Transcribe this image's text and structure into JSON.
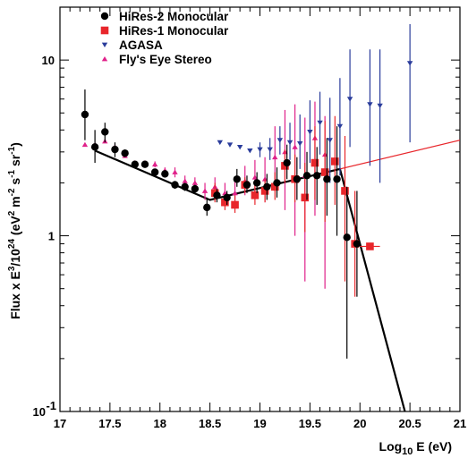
{
  "chart_data": {
    "type": "scatter",
    "xlabel_base": "Log",
    "xlabel_sub": "10",
    "xlabel_rest": " E (eV)",
    "ylabel_main": "Flux x E",
    "ylabel_sup1": "3",
    "ylabel_mid": "/10",
    "ylabel_sup2": "24",
    "ylabel_unit": " (eV",
    "ylabel_sup3": "2",
    "ylabel_m": " m",
    "ylabel_sup4": "-2",
    "ylabel_s": " s",
    "ylabel_sup5": "-1",
    "ylabel_sr": " sr",
    "ylabel_sup6": "-1",
    "ylabel_close": ")",
    "x_scale": "linear",
    "y_scale": "log",
    "xlim": [
      17,
      21
    ],
    "ylim": [
      0.1,
      20
    ],
    "x_ticks": [
      "17",
      "17.5",
      "18",
      "18.5",
      "19",
      "19.5",
      "20",
      "20.5",
      "21"
    ],
    "y_ticks": [
      {
        "value": 0.1,
        "base": "10",
        "sup": "-1"
      },
      {
        "value": 1,
        "base": "1",
        "sup": ""
      },
      {
        "value": 10,
        "base": "10",
        "sup": ""
      }
    ],
    "legend_position": "top-left",
    "series": [
      {
        "name": "HiRes-2 Monocular",
        "marker": "circle",
        "color": "#000000",
        "points": [
          {
            "x": 17.25,
            "y": 4.9,
            "lo": 3.5,
            "hi": 6.8
          },
          {
            "x": 17.35,
            "y": 3.2,
            "lo": 2.6,
            "hi": 4.0
          },
          {
            "x": 17.45,
            "y": 3.9,
            "lo": 3.4,
            "hi": 4.4
          },
          {
            "x": 17.55,
            "y": 3.1,
            "lo": 2.8,
            "hi": 3.4
          },
          {
            "x": 17.65,
            "y": 2.95,
            "lo": 2.8,
            "hi": 3.1
          },
          {
            "x": 17.75,
            "y": 2.55,
            "lo": 2.45,
            "hi": 2.65
          },
          {
            "x": 17.85,
            "y": 2.55,
            "lo": 2.45,
            "hi": 2.65
          },
          {
            "x": 17.95,
            "y": 2.3,
            "lo": 2.2,
            "hi": 2.4
          },
          {
            "x": 18.05,
            "y": 2.25,
            "lo": 2.15,
            "hi": 2.35
          },
          {
            "x": 18.15,
            "y": 1.95,
            "lo": 1.85,
            "hi": 2.05
          },
          {
            "x": 18.25,
            "y": 1.9,
            "lo": 1.8,
            "hi": 2.0
          },
          {
            "x": 18.35,
            "y": 1.85,
            "lo": 1.75,
            "hi": 1.95
          },
          {
            "x": 18.47,
            "y": 1.45,
            "lo": 1.3,
            "hi": 1.65
          },
          {
            "x": 18.57,
            "y": 1.7,
            "lo": 1.55,
            "hi": 1.85
          },
          {
            "x": 18.67,
            "y": 1.65,
            "lo": 1.5,
            "hi": 1.8
          },
          {
            "x": 18.77,
            "y": 2.1,
            "lo": 1.9,
            "hi": 2.4
          },
          {
            "x": 18.87,
            "y": 1.95,
            "lo": 1.75,
            "hi": 2.2
          },
          {
            "x": 18.97,
            "y": 2.0,
            "lo": 1.75,
            "hi": 2.3
          },
          {
            "x": 19.07,
            "y": 1.9,
            "lo": 1.6,
            "hi": 2.25
          },
          {
            "x": 19.17,
            "y": 2.0,
            "lo": 1.65,
            "hi": 2.45
          },
          {
            "x": 19.27,
            "y": 2.6,
            "lo": 2.1,
            "hi": 3.3
          },
          {
            "x": 19.37,
            "y": 2.1,
            "lo": 1.6,
            "hi": 2.8
          },
          {
            "x": 19.47,
            "y": 2.2,
            "lo": 1.6,
            "hi": 3.0
          },
          {
            "x": 19.57,
            "y": 2.2,
            "lo": 1.5,
            "hi": 3.2
          },
          {
            "x": 19.67,
            "y": 2.1,
            "lo": 1.3,
            "hi": 3.6
          },
          {
            "x": 19.77,
            "y": 2.1,
            "lo": 1.0,
            "hi": 4.2
          },
          {
            "x": 19.87,
            "y": 0.98,
            "lo": 0.2,
            "hi": 1.9
          },
          {
            "x": 19.97,
            "y": 0.9,
            "lo": 0.45,
            "hi": 1.8
          }
        ]
      },
      {
        "name": "HiRes-1 Monocular",
        "marker": "square",
        "color": "#e8262b",
        "points": [
          {
            "x": 18.55,
            "y": 1.75,
            "lo": 1.55,
            "hi": 2.0
          },
          {
            "x": 18.65,
            "y": 1.55,
            "lo": 1.4,
            "hi": 1.7
          },
          {
            "x": 18.75,
            "y": 1.5,
            "lo": 1.35,
            "hi": 1.7
          },
          {
            "x": 18.85,
            "y": 1.95,
            "lo": 1.75,
            "hi": 2.15
          },
          {
            "x": 18.95,
            "y": 1.7,
            "lo": 1.5,
            "hi": 1.95
          },
          {
            "x": 19.05,
            "y": 1.8,
            "lo": 1.55,
            "hi": 2.1
          },
          {
            "x": 19.15,
            "y": 1.9,
            "lo": 1.6,
            "hi": 2.3
          },
          {
            "x": 19.25,
            "y": 2.5,
            "lo": 2.0,
            "hi": 3.1
          },
          {
            "x": 19.35,
            "y": 2.1,
            "lo": 1.55,
            "hi": 2.9
          },
          {
            "x": 19.45,
            "y": 1.65,
            "lo": 1.05,
            "hi": 2.6
          },
          {
            "x": 19.55,
            "y": 2.6,
            "lo": 1.6,
            "hi": 4.2
          },
          {
            "x": 19.65,
            "y": 2.3,
            "lo": 1.2,
            "hi": 4.5
          },
          {
            "x": 19.75,
            "y": 2.65,
            "lo": 1.5,
            "hi": 4.8
          },
          {
            "x": 19.85,
            "y": 1.8,
            "lo": 0.55,
            "hi": 3.7
          },
          {
            "x": 19.95,
            "y": 0.9,
            "lo": 0.45,
            "hi": 1.8
          },
          {
            "x": 20.1,
            "y": 0.87,
            "lo": 0.87,
            "hi": 0.87,
            "xlo": 20.0,
            "xhi": 20.2
          }
        ]
      },
      {
        "name": "AGASA",
        "marker": "triangle-down",
        "color": "#2a3c9b",
        "points": [
          {
            "x": 18.6,
            "y": 3.4,
            "lo": 3.4,
            "hi": 3.4
          },
          {
            "x": 18.7,
            "y": 3.3,
            "lo": 3.3,
            "hi": 3.3
          },
          {
            "x": 18.8,
            "y": 3.2,
            "lo": 3.2,
            "hi": 3.2
          },
          {
            "x": 18.9,
            "y": 3.05,
            "lo": 3.05,
            "hi": 3.05
          },
          {
            "x": 19.0,
            "y": 3.1,
            "lo": 2.8,
            "hi": 3.4
          },
          {
            "x": 19.1,
            "y": 3.1,
            "lo": 2.7,
            "hi": 3.6
          },
          {
            "x": 19.2,
            "y": 3.5,
            "lo": 2.9,
            "hi": 4.2
          },
          {
            "x": 19.3,
            "y": 3.4,
            "lo": 2.7,
            "hi": 4.4
          },
          {
            "x": 19.4,
            "y": 3.35,
            "lo": 2.4,
            "hi": 4.9
          },
          {
            "x": 19.5,
            "y": 3.9,
            "lo": 2.6,
            "hi": 5.9
          },
          {
            "x": 19.6,
            "y": 4.4,
            "lo": 2.9,
            "hi": 6.6
          },
          {
            "x": 19.7,
            "y": 3.5,
            "lo": 2.0,
            "hi": 6.1
          },
          {
            "x": 19.8,
            "y": 4.2,
            "lo": 2.2,
            "hi": 7.9
          },
          {
            "x": 19.9,
            "y": 6.0,
            "lo": 3.2,
            "hi": 11.5
          },
          {
            "x": 20.1,
            "y": 5.6,
            "lo": 2.5,
            "hi": 11.5
          },
          {
            "x": 20.2,
            "y": 5.5,
            "lo": 2.0,
            "hi": 11.5
          },
          {
            "x": 20.5,
            "y": 9.6,
            "lo": 3.4,
            "hi": 16.0
          }
        ]
      },
      {
        "name": "Fly's Eye Stereo",
        "marker": "triangle-up",
        "color": "#e0218a",
        "points": [
          {
            "x": 17.25,
            "y": 3.3,
            "lo": 3.3,
            "hi": 3.3
          },
          {
            "x": 17.35,
            "y": 3.3,
            "lo": 3.3,
            "hi": 3.3
          },
          {
            "x": 17.45,
            "y": 3.45,
            "lo": 3.45,
            "hi": 3.45
          },
          {
            "x": 17.55,
            "y": 3.2,
            "lo": 3.2,
            "hi": 3.2
          },
          {
            "x": 17.65,
            "y": 2.85,
            "lo": 2.85,
            "hi": 2.85
          },
          {
            "x": 17.75,
            "y": 2.6,
            "lo": 2.6,
            "hi": 2.6
          },
          {
            "x": 17.85,
            "y": 2.6,
            "lo": 2.6,
            "hi": 2.6
          },
          {
            "x": 17.95,
            "y": 2.55,
            "lo": 2.45,
            "hi": 2.65
          },
          {
            "x": 18.05,
            "y": 2.35,
            "lo": 2.25,
            "hi": 2.45
          },
          {
            "x": 18.15,
            "y": 2.3,
            "lo": 2.15,
            "hi": 2.45
          },
          {
            "x": 18.25,
            "y": 2.05,
            "lo": 1.9,
            "hi": 2.2
          },
          {
            "x": 18.35,
            "y": 2.0,
            "lo": 1.85,
            "hi": 2.15
          },
          {
            "x": 18.45,
            "y": 1.8,
            "lo": 1.6,
            "hi": 2.0
          },
          {
            "x": 18.55,
            "y": 1.9,
            "lo": 1.65,
            "hi": 2.15
          },
          {
            "x": 18.65,
            "y": 1.75,
            "lo": 1.5,
            "hi": 2.0
          },
          {
            "x": 18.75,
            "y": 1.75,
            "lo": 1.45,
            "hi": 2.1
          },
          {
            "x": 18.85,
            "y": 2.05,
            "lo": 1.7,
            "hi": 2.5
          },
          {
            "x": 18.95,
            "y": 2.15,
            "lo": 1.7,
            "hi": 2.7
          },
          {
            "x": 19.05,
            "y": 2.1,
            "lo": 1.55,
            "hi": 2.8
          },
          {
            "x": 19.15,
            "y": 2.8,
            "lo": 1.8,
            "hi": 4.2
          },
          {
            "x": 19.25,
            "y": 3.0,
            "lo": 1.4,
            "hi": 5.2
          },
          {
            "x": 19.35,
            "y": 3.2,
            "lo": 1.0,
            "hi": 5.6
          },
          {
            "x": 19.45,
            "y": 2.2,
            "lo": 0.55,
            "hi": 4.7
          },
          {
            "x": 19.55,
            "y": 3.6,
            "lo": 1.3,
            "hi": 5.8
          },
          {
            "x": 19.65,
            "y": 2.9,
            "lo": 0.5,
            "hi": 4.8
          }
        ]
      }
    ],
    "fit_lines": [
      {
        "color": "#000000",
        "points": [
          [
            17.35,
            3.05
          ],
          [
            18.5,
            1.6
          ],
          [
            19.8,
            2.4
          ],
          [
            20.45,
            0.1
          ]
        ]
      },
      {
        "color": "#e8262b",
        "points": [
          [
            19.8,
            2.4
          ],
          [
            21.0,
            3.5
          ]
        ]
      }
    ]
  }
}
